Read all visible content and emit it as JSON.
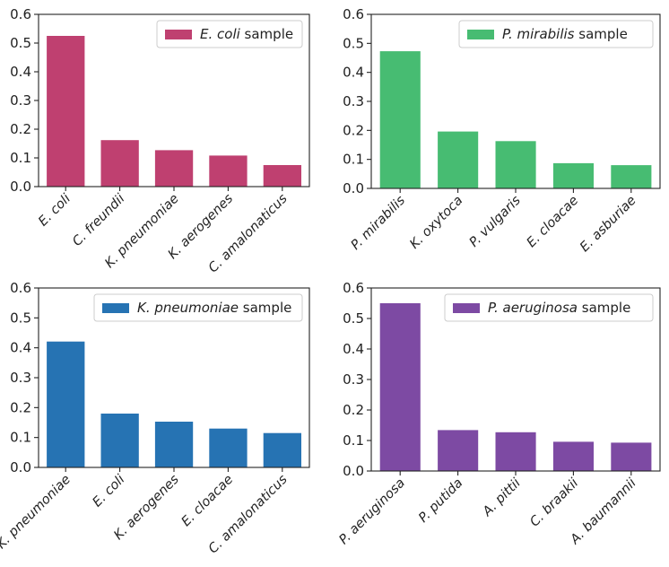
{
  "chart_data": [
    {
      "type": "bar",
      "color": "#bf4070",
      "legend": {
        "italic": "E.  coli",
        "suffix": " sample",
        "location": "upper right"
      },
      "categories": [
        "E.  coli",
        "C.  freundii",
        "K.  pneumoniae",
        "K.  aerogenes",
        "C.  amalonaticus"
      ],
      "values": [
        0.525,
        0.162,
        0.127,
        0.108,
        0.075
      ],
      "ylim": [
        0,
        0.6
      ],
      "yticks": [
        "0.0",
        "0.1",
        "0.2",
        "0.3",
        "0.4",
        "0.5",
        "0.6"
      ]
    },
    {
      "type": "bar",
      "color": "#47bc72",
      "legend": {
        "italic": "P.  mirabilis",
        "suffix": " sample",
        "location": "upper right"
      },
      "categories": [
        "P.  mirabilis",
        "K.  oxytoca",
        "P.  vulgaris",
        "E.  cloacae",
        "E.  asburiae"
      ],
      "values": [
        0.473,
        0.196,
        0.163,
        0.087,
        0.08
      ],
      "ylim": [
        0,
        0.6
      ],
      "yticks": [
        "0.0",
        "0.1",
        "0.2",
        "0.3",
        "0.4",
        "0.5",
        "0.6"
      ]
    },
    {
      "type": "bar",
      "color": "#2673b3",
      "legend": {
        "italic": "K.  pneumoniae",
        "suffix": " sample",
        "location": "upper right"
      },
      "categories": [
        "K.  pneumoniae",
        "E.  coli",
        "K.  aerogenes",
        "E.  cloacae",
        "C.  amalonaticus"
      ],
      "values": [
        0.421,
        0.18,
        0.153,
        0.13,
        0.115
      ],
      "ylim": [
        0,
        0.6
      ],
      "yticks": [
        "0.0",
        "0.1",
        "0.2",
        "0.3",
        "0.4",
        "0.5",
        "0.6"
      ]
    },
    {
      "type": "bar",
      "color": "#7d4aa3",
      "legend": {
        "italic": "P.  aeruginosa",
        "suffix": " sample",
        "location": "upper right"
      },
      "categories": [
        "P.  aeruginosa",
        "P.  putida",
        "A.  pittii",
        "C.  braakii",
        "A.  baumannii"
      ],
      "values": [
        0.55,
        0.134,
        0.127,
        0.096,
        0.093
      ],
      "ylim": [
        0,
        0.6
      ],
      "yticks": [
        "0.0",
        "0.1",
        "0.2",
        "0.3",
        "0.4",
        "0.5",
        "0.6"
      ]
    }
  ]
}
